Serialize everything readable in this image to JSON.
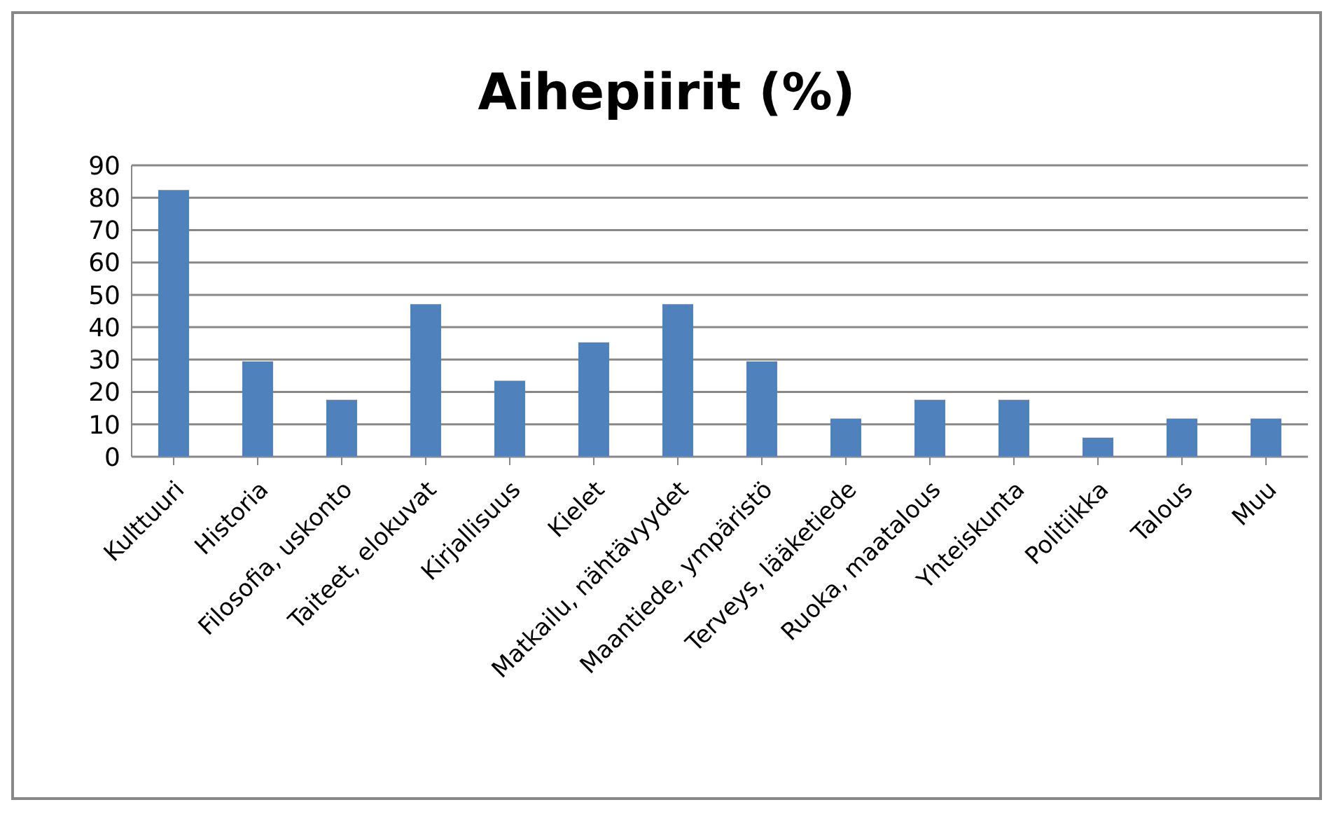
{
  "chart_data": {
    "type": "bar",
    "title": "Aihepiirit (%)",
    "categories": [
      "Kulttuuri",
      "Historia",
      "Filosofia, uskonto",
      "Taiteet, elokuvat",
      "Kirjallisuus",
      "Kielet",
      "Matkailu, nähtävyydet",
      "Maantiede, ympäristö",
      "Terveys, lääketiede",
      "Ruoka, maatalous",
      "Yhteiskunta",
      "Politiikka",
      "Talous",
      "Muu"
    ],
    "values": [
      82.4,
      29.4,
      17.6,
      47.1,
      23.5,
      35.3,
      47.1,
      29.4,
      11.8,
      17.6,
      17.6,
      5.9,
      11.8,
      11.8
    ],
    "color": "#4f81bd",
    "ylim": [
      0,
      90
    ],
    "yticks": [
      0,
      10,
      20,
      30,
      40,
      50,
      60,
      70,
      80,
      90
    ],
    "grid": "y"
  }
}
